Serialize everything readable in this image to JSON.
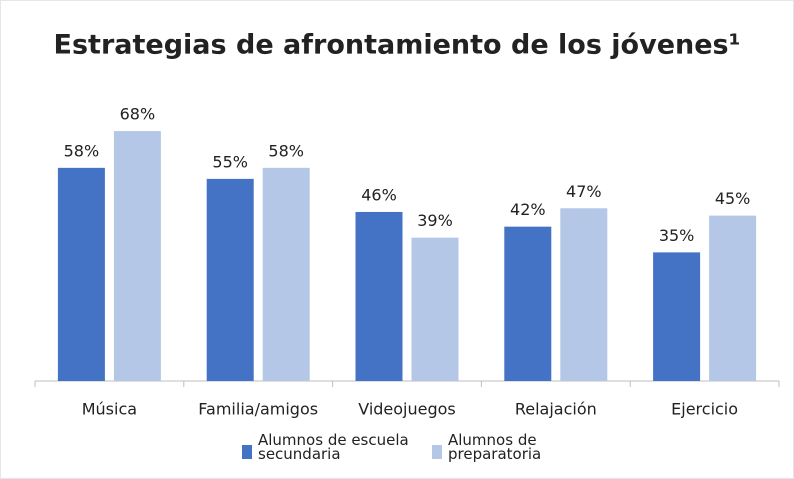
{
  "chart_data": {
    "type": "bar",
    "title": "Estrategias de afrontamiento de los jóvenes¹",
    "categories": [
      "Música",
      "Familia/amigos",
      "Videojuegos",
      "Relajación",
      "Ejercicio"
    ],
    "series": [
      {
        "name": "Alumnos de escuela secundaria",
        "color": "#4472c4",
        "values": [
          58,
          55,
          46,
          42,
          35
        ],
        "value_labels": [
          "58%",
          "55%",
          "46%",
          "42%",
          "35%"
        ]
      },
      {
        "name": "Alumnos de preparatoria",
        "color": "#b4c7e7",
        "values": [
          68,
          58,
          39,
          47,
          45
        ],
        "value_labels": [
          "68%",
          "58%",
          "39%",
          "47%",
          "45%"
        ]
      }
    ],
    "ylim": [
      0,
      80
    ]
  }
}
